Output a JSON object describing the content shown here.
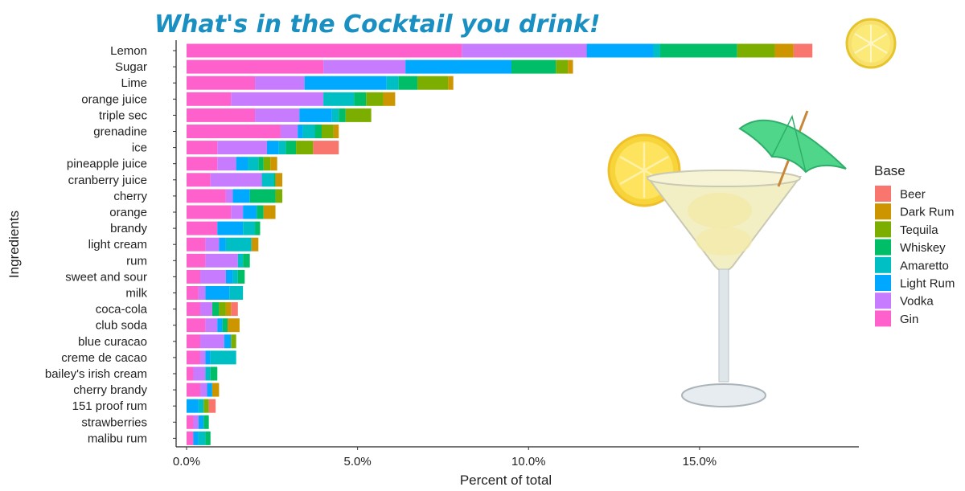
{
  "chart_data": {
    "type": "bar",
    "orientation": "horizontal",
    "stacked": true,
    "title": "What's in the Cocktail you drink!",
    "xlabel": "Percent of total",
    "ylabel": "Ingredients",
    "xlim": [
      0,
      0.19
    ],
    "xticks": [
      0,
      0.05,
      0.1,
      0.15
    ],
    "xtick_labels": [
      "0.0%",
      "5.0%",
      "10.0%",
      "15.0%"
    ],
    "grid": false,
    "legend_title": "Base",
    "legend_position": "right",
    "categories": [
      "Lemon",
      "Sugar",
      "Lime",
      "orange juice",
      "triple sec",
      "grenadine",
      "ice",
      "pineapple juice",
      "cranberry juice",
      "cherry",
      "orange",
      "brandy",
      "light cream",
      "rum",
      "sweet and sour",
      "milk",
      "coca-cola",
      "club soda",
      "blue curacao",
      "creme de cacao",
      "bailey's irish cream",
      "cherry brandy",
      "151 proof rum",
      "strawberries",
      "malibu rum"
    ],
    "series": [
      {
        "name": "Gin",
        "color": "#FF61CC",
        "values": [
          0.0805,
          0.04,
          0.02,
          0.013,
          0.02,
          0.0275,
          0.009,
          0.009,
          0.007,
          0.0115,
          0.013,
          0.009,
          0.0055,
          0.0055,
          0.004,
          0.0035,
          0.004,
          0.0055,
          0.004,
          0.004,
          0.002,
          0.004,
          0.0,
          0.002,
          0.002
        ]
      },
      {
        "name": "Vodka",
        "color": "#C77CFF",
        "values": [
          0.0365,
          0.024,
          0.0145,
          0.027,
          0.013,
          0.005,
          0.0145,
          0.0055,
          0.015,
          0.002,
          0.0035,
          0.0,
          0.004,
          0.0095,
          0.0075,
          0.002,
          0.0035,
          0.0035,
          0.007,
          0.0015,
          0.0035,
          0.002,
          0.0,
          0.0015,
          0.0
        ]
      },
      {
        "name": "Light Rum",
        "color": "#00A9FF",
        "values": [
          0.0195,
          0.031,
          0.024,
          0.0,
          0.0095,
          0.0015,
          0.0035,
          0.0035,
          0.0,
          0.005,
          0.004,
          0.0075,
          0.002,
          0.0,
          0.002,
          0.007,
          0.0,
          0.0015,
          0.002,
          0.0015,
          0.0,
          0.0015,
          0.0035,
          0.0015,
          0.0015
        ]
      },
      {
        "name": "Amaretto",
        "color": "#00BFC4",
        "values": [
          0.002,
          0.0,
          0.0035,
          0.009,
          0.002,
          0.0035,
          0.002,
          0.003,
          0.0035,
          0.0,
          0.0,
          0.0035,
          0.0075,
          0.0015,
          0.0015,
          0.004,
          0.0,
          0.0,
          0.0,
          0.0075,
          0.0015,
          0.0,
          0.0015,
          0.0,
          0.002
        ]
      },
      {
        "name": "Whiskey",
        "color": "#00BE67",
        "values": [
          0.0225,
          0.013,
          0.0055,
          0.0035,
          0.002,
          0.002,
          0.003,
          0.0015,
          0.0005,
          0.0075,
          0.002,
          0.0015,
          0.0,
          0.002,
          0.002,
          0.0,
          0.002,
          0.0015,
          0.0,
          0.0,
          0.002,
          0.0,
          0.0,
          0.0015,
          0.0015
        ]
      },
      {
        "name": "Tequila",
        "color": "#7CAE00",
        "values": [
          0.011,
          0.0035,
          0.009,
          0.005,
          0.0075,
          0.0035,
          0.005,
          0.002,
          0.0,
          0.002,
          0.0,
          0.0,
          0.0,
          0.0,
          0.0,
          0.0,
          0.002,
          0.0,
          0.0015,
          0.0,
          0.0,
          0.0,
          0.0015,
          0.0,
          0.0
        ]
      },
      {
        "name": "Dark Rum",
        "color": "#CD9600",
        "values": [
          0.0055,
          0.0015,
          0.0015,
          0.0035,
          0.0,
          0.0015,
          0.0,
          0.002,
          0.002,
          0.0,
          0.0035,
          0.0,
          0.002,
          0.0,
          0.0,
          0.0,
          0.0015,
          0.0035,
          0.0,
          0.0,
          0.0,
          0.002,
          0.0,
          0.0,
          0.0
        ]
      },
      {
        "name": "Beer",
        "color": "#F8766D",
        "values": [
          0.0055,
          0.0,
          0.0,
          0.0,
          0.0,
          0.0,
          0.0075,
          0.0,
          0.0,
          0.0,
          0.0,
          0.0,
          0.0,
          0.0,
          0.0,
          0.0,
          0.002,
          0.0,
          0.0,
          0.0,
          0.0,
          0.0,
          0.002,
          0.0,
          0.0
        ]
      }
    ],
    "legend_order": [
      "Beer",
      "Dark Rum",
      "Tequila",
      "Whiskey",
      "Amaretto",
      "Light Rum",
      "Vodka",
      "Gin"
    ]
  },
  "decorations": {
    "lemon_slice_icon": "lemon-slice",
    "cocktail_glass_icon": "martini-glass-with-umbrella"
  }
}
